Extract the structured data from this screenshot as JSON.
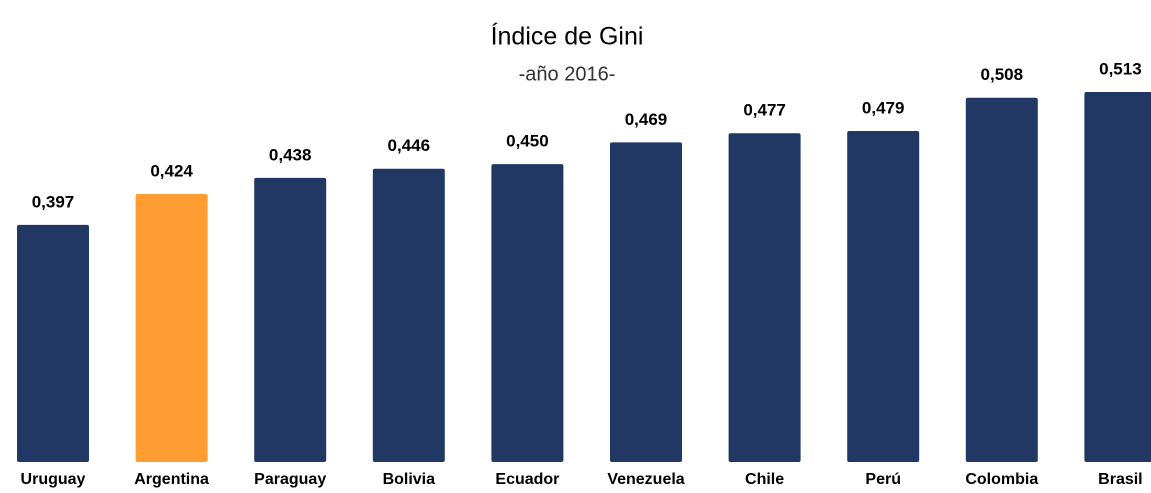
{
  "chart_data": {
    "type": "bar",
    "title": "Índice de Gini",
    "subtitle": "-año 2016-",
    "categories": [
      "Uruguay",
      "Argentina",
      "Paraguay",
      "Bolivia",
      "Ecuador",
      "Venezuela",
      "Chile",
      "Perú",
      "Colombia",
      "Brasil"
    ],
    "values": [
      0.397,
      0.424,
      0.438,
      0.446,
      0.45,
      0.469,
      0.477,
      0.479,
      0.508,
      0.513
    ],
    "value_labels": [
      "0,397",
      "0,424",
      "0,438",
      "0,446",
      "0,450",
      "0,469",
      "0,477",
      "0,479",
      "0,508",
      "0,513"
    ],
    "colors": [
      "#213864",
      "#ff9d33",
      "#213864",
      "#213864",
      "#213864",
      "#213864",
      "#213864",
      "#213864",
      "#213864",
      "#213864"
    ],
    "ylim": [
      0.19,
      0.52
    ]
  }
}
